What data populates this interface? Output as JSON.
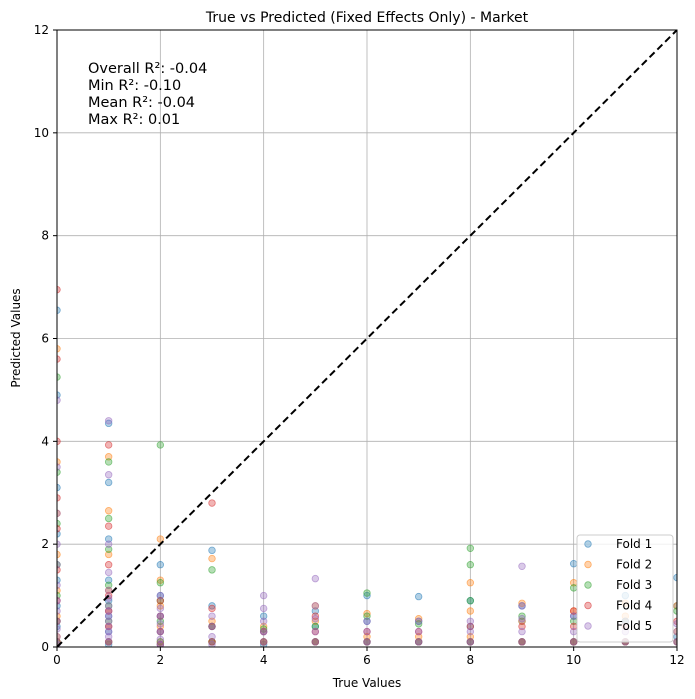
{
  "chart_data": {
    "type": "scatter",
    "title": "True vs Predicted (Fixed Effects Only) - Market",
    "xlabel": "True Values",
    "ylabel": "Predicted Values",
    "xlim": [
      0,
      12
    ],
    "ylim": [
      0,
      12
    ],
    "xticks": [
      "0",
      "2",
      "4",
      "6",
      "8",
      "10",
      "12"
    ],
    "yticks": [
      "0",
      "2",
      "4",
      "6",
      "8",
      "10",
      "12"
    ],
    "grid": true,
    "legend_position": "bottom-right",
    "reference_line": {
      "style": "dashed",
      "color": "#000000",
      "from": [
        0,
        0
      ],
      "to": [
        12,
        12
      ]
    },
    "annotations": [
      "Overall R²: -0.04",
      "Min R²: -0.10",
      "Mean R²: -0.04",
      "Max R²: 0.01"
    ],
    "series": [
      {
        "name": "Fold 1",
        "color": "#1f77b4",
        "points": [
          [
            0,
            0.1
          ],
          [
            0,
            0.4
          ],
          [
            0,
            0.8
          ],
          [
            0,
            1.3
          ],
          [
            0,
            2.2
          ],
          [
            0,
            3.1
          ],
          [
            0,
            4.9
          ],
          [
            0,
            6.55
          ],
          [
            1,
            0.05
          ],
          [
            1,
            0.3
          ],
          [
            1,
            0.6
          ],
          [
            1,
            0.9
          ],
          [
            1,
            1.3
          ],
          [
            1,
            2.1
          ],
          [
            1,
            3.2
          ],
          [
            1,
            4.35
          ],
          [
            2,
            0.05
          ],
          [
            2,
            0.3
          ],
          [
            2,
            0.6
          ],
          [
            2,
            1.0
          ],
          [
            2,
            1.6
          ],
          [
            3,
            0.1
          ],
          [
            3,
            0.4
          ],
          [
            3,
            0.8
          ],
          [
            3,
            1.88
          ],
          [
            4,
            0.05
          ],
          [
            4,
            0.3
          ],
          [
            4,
            0.6
          ],
          [
            5,
            0.1
          ],
          [
            5,
            0.4
          ],
          [
            5,
            0.7
          ],
          [
            6,
            0.1
          ],
          [
            6,
            0.5
          ],
          [
            6,
            1.0
          ],
          [
            7,
            0.1
          ],
          [
            7,
            0.5
          ],
          [
            7,
            0.98
          ],
          [
            8,
            0.1
          ],
          [
            8,
            0.4
          ],
          [
            8,
            0.9
          ],
          [
            9,
            0.1
          ],
          [
            9,
            0.5
          ],
          [
            9,
            0.8
          ],
          [
            10,
            0.1
          ],
          [
            10,
            0.6
          ],
          [
            10,
            1.62
          ],
          [
            11,
            0.1
          ],
          [
            11,
            0.5
          ],
          [
            11,
            1.0
          ],
          [
            12,
            0.2
          ],
          [
            12,
            0.8
          ],
          [
            12,
            1.35
          ]
        ]
      },
      {
        "name": "Fold 2",
        "color": "#ff7f0e",
        "points": [
          [
            0,
            0.2
          ],
          [
            0,
            0.6
          ],
          [
            0,
            1.1
          ],
          [
            0,
            1.8
          ],
          [
            0,
            2.6
          ],
          [
            0,
            3.6
          ],
          [
            0,
            5.8
          ],
          [
            1,
            0.1
          ],
          [
            1,
            0.4
          ],
          [
            1,
            0.7
          ],
          [
            1,
            1.1
          ],
          [
            1,
            1.8
          ],
          [
            1,
            2.65
          ],
          [
            1,
            3.7
          ],
          [
            2,
            0.1
          ],
          [
            2,
            0.4
          ],
          [
            2,
            0.8
          ],
          [
            2,
            1.3
          ],
          [
            2,
            2.1
          ],
          [
            3,
            0.1
          ],
          [
            3,
            0.5
          ],
          [
            3,
            1.72
          ],
          [
            4,
            0.1
          ],
          [
            4,
            0.4
          ],
          [
            5,
            0.1
          ],
          [
            5,
            0.5
          ],
          [
            5,
            0.8
          ],
          [
            6,
            0.2
          ],
          [
            6,
            0.65
          ],
          [
            7,
            0.2
          ],
          [
            7,
            0.55
          ],
          [
            8,
            0.2
          ],
          [
            8,
            0.7
          ],
          [
            8,
            1.25
          ],
          [
            9,
            0.1
          ],
          [
            9,
            0.5
          ],
          [
            9,
            0.85
          ],
          [
            10,
            0.1
          ],
          [
            10,
            0.7
          ],
          [
            10,
            1.25
          ],
          [
            11,
            0.1
          ],
          [
            11,
            0.6
          ],
          [
            11,
            0.85
          ],
          [
            12,
            0.3
          ],
          [
            12,
            0.8
          ]
        ]
      },
      {
        "name": "Fold 3",
        "color": "#2ca02c",
        "points": [
          [
            0,
            0.1
          ],
          [
            0,
            0.5
          ],
          [
            0,
            1.0
          ],
          [
            0,
            1.6
          ],
          [
            0,
            2.4
          ],
          [
            0,
            3.4
          ],
          [
            0,
            5.25
          ],
          [
            1,
            0.1
          ],
          [
            1,
            0.5
          ],
          [
            1,
            0.8
          ],
          [
            1,
            1.2
          ],
          [
            1,
            1.9
          ],
          [
            1,
            2.5
          ],
          [
            1,
            3.6
          ],
          [
            2,
            0.1
          ],
          [
            2,
            0.5
          ],
          [
            2,
            0.9
          ],
          [
            2,
            1.25
          ],
          [
            2,
            3.93
          ],
          [
            3,
            0.1
          ],
          [
            3,
            0.4
          ],
          [
            3,
            1.5
          ],
          [
            4,
            0.1
          ],
          [
            4,
            0.35
          ],
          [
            5,
            0.1
          ],
          [
            5,
            0.4
          ],
          [
            6,
            0.1
          ],
          [
            6,
            0.6
          ],
          [
            6,
            1.05
          ],
          [
            7,
            0.1
          ],
          [
            7,
            0.45
          ],
          [
            8,
            0.1
          ],
          [
            8,
            0.9
          ],
          [
            8,
            1.6
          ],
          [
            8,
            1.92
          ],
          [
            9,
            0.1
          ],
          [
            9,
            0.6
          ],
          [
            10,
            0.1
          ],
          [
            10,
            0.5
          ],
          [
            10,
            1.15
          ],
          [
            11,
            0.1
          ],
          [
            11,
            0.5
          ],
          [
            12,
            0.1
          ],
          [
            12,
            0.7
          ]
        ]
      },
      {
        "name": "Fold 4",
        "color": "#d62728",
        "points": [
          [
            0,
            0.1
          ],
          [
            0,
            0.5
          ],
          [
            0,
            0.9
          ],
          [
            0,
            1.5
          ],
          [
            0,
            2.3
          ],
          [
            0,
            2.9
          ],
          [
            0,
            4.0
          ],
          [
            0,
            5.6
          ],
          [
            0,
            6.95
          ],
          [
            1,
            0.1
          ],
          [
            1,
            0.4
          ],
          [
            1,
            0.7
          ],
          [
            1,
            1.0
          ],
          [
            1,
            1.6
          ],
          [
            1,
            2.35
          ],
          [
            1,
            3.93
          ],
          [
            2,
            0.05
          ],
          [
            2,
            0.3
          ],
          [
            2,
            0.6
          ],
          [
            2,
            0.9
          ],
          [
            3,
            0.1
          ],
          [
            3,
            0.4
          ],
          [
            3,
            0.75
          ],
          [
            3,
            2.8
          ],
          [
            4,
            0.1
          ],
          [
            4,
            0.3
          ],
          [
            5,
            0.1
          ],
          [
            5,
            0.3
          ],
          [
            5,
            0.6
          ],
          [
            6,
            0.1
          ],
          [
            6,
            0.3
          ],
          [
            7,
            0.1
          ],
          [
            7,
            0.3
          ],
          [
            8,
            0.1
          ],
          [
            8,
            0.4
          ],
          [
            9,
            0.1
          ],
          [
            9,
            0.4
          ],
          [
            10,
            0.1
          ],
          [
            10,
            0.4
          ],
          [
            10,
            0.7
          ],
          [
            11,
            0.1
          ],
          [
            11,
            0.4
          ],
          [
            12,
            0.1
          ],
          [
            12,
            0.5
          ]
        ]
      },
      {
        "name": "Fold 5",
        "color": "#9467bd",
        "points": [
          [
            0,
            0.05
          ],
          [
            0,
            0.2
          ],
          [
            0,
            0.35
          ],
          [
            0,
            0.5
          ],
          [
            0,
            0.7
          ],
          [
            0,
            0.9
          ],
          [
            0,
            1.2
          ],
          [
            0,
            1.6
          ],
          [
            0,
            2.0
          ],
          [
            0,
            2.6
          ],
          [
            0,
            3.5
          ],
          [
            0,
            4.8
          ],
          [
            1,
            0.1
          ],
          [
            1,
            0.2
          ],
          [
            1,
            0.3
          ],
          [
            1,
            0.4
          ],
          [
            1,
            0.5
          ],
          [
            1,
            0.6
          ],
          [
            1,
            0.7
          ],
          [
            1,
            0.8
          ],
          [
            1,
            0.95
          ],
          [
            1,
            1.1
          ],
          [
            1,
            1.45
          ],
          [
            1,
            2.0
          ],
          [
            1,
            3.35
          ],
          [
            1,
            4.4
          ],
          [
            2,
            0.05
          ],
          [
            2,
            0.15
          ],
          [
            2,
            0.3
          ],
          [
            2,
            0.45
          ],
          [
            2,
            0.6
          ],
          [
            2,
            0.75
          ],
          [
            2,
            1.0
          ],
          [
            3,
            0.05
          ],
          [
            3,
            0.2
          ],
          [
            3,
            0.4
          ],
          [
            3,
            0.6
          ],
          [
            4,
            0.1
          ],
          [
            4,
            0.3
          ],
          [
            4,
            0.5
          ],
          [
            4,
            0.75
          ],
          [
            4,
            1.0
          ],
          [
            5,
            0.1
          ],
          [
            5,
            0.3
          ],
          [
            5,
            0.55
          ],
          [
            5,
            0.8
          ],
          [
            5,
            1.33
          ],
          [
            6,
            0.1
          ],
          [
            6,
            0.3
          ],
          [
            6,
            0.5
          ],
          [
            7,
            0.1
          ],
          [
            7,
            0.3
          ],
          [
            7,
            0.5
          ],
          [
            8,
            0.1
          ],
          [
            8,
            0.3
          ],
          [
            8,
            0.5
          ],
          [
            9,
            0.1
          ],
          [
            9,
            0.3
          ],
          [
            9,
            0.55
          ],
          [
            9,
            0.8
          ],
          [
            9,
            1.57
          ],
          [
            10,
            0.1
          ],
          [
            10,
            0.3
          ],
          [
            10,
            0.6
          ],
          [
            11,
            0.1
          ],
          [
            11,
            0.3
          ],
          [
            11,
            0.5
          ],
          [
            12,
            0.1
          ],
          [
            12,
            0.3
          ],
          [
            12,
            0.45
          ]
        ]
      }
    ]
  }
}
